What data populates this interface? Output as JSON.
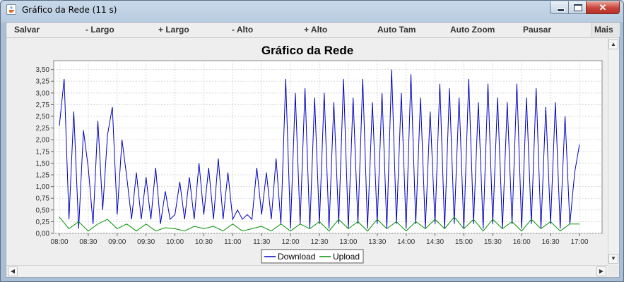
{
  "window": {
    "title": "Gráfico da Rede (11 s)",
    "app_icon": "java-cup-icon",
    "controls": {
      "minimize_icon": "minimize-icon",
      "maximize_icon": "maximize-icon",
      "close_label": "✕"
    }
  },
  "toolbar": {
    "items": [
      "Salvar",
      "- Largo",
      "+ Largo",
      "- Alto",
      "+ Alto",
      "Auto Tam",
      "Auto Zoom",
      "Pausar"
    ],
    "more_label": "Mais"
  },
  "scrollbars": {
    "up": "▲",
    "down": "▼",
    "left": "◀",
    "right": "▶"
  },
  "chart_data": {
    "type": "line",
    "title": "Gráfico da Rede",
    "xlabel": "",
    "ylabel": "",
    "x_ticks": [
      "08:00",
      "08:30",
      "09:00",
      "09:30",
      "10:00",
      "10:30",
      "11:00",
      "11:30",
      "12:00",
      "12:30",
      "13:00",
      "13:30",
      "14:00",
      "14:30",
      "15:00",
      "15:30",
      "16:00",
      "16:30",
      "17:00"
    ],
    "y_ticks": [
      "0,00",
      "0,25",
      "0,50",
      "0,75",
      "1,00",
      "1,25",
      "1,50",
      "1,75",
      "2,00",
      "2,25",
      "2,50",
      "2,75",
      "3,00",
      "3,25",
      "3,50"
    ],
    "xlim": [
      "08:00",
      "17:00"
    ],
    "ylim": [
      0,
      3.6
    ],
    "grid": true,
    "legend_position": "bottom-center",
    "series": [
      {
        "name": "Download",
        "color": "#0000c0",
        "segments": [
          {
            "x": "08:00",
            "y": 2.3
          },
          {
            "x": "08:05",
            "y": 3.3
          },
          {
            "x": "08:10",
            "y": 0.3
          },
          {
            "x": "08:15",
            "y": 2.6
          },
          {
            "x": "08:20",
            "y": 0.1
          },
          {
            "x": "08:25",
            "y": 2.2
          },
          {
            "x": "08:30",
            "y": 1.4
          },
          {
            "x": "08:35",
            "y": 0.2
          },
          {
            "x": "08:40",
            "y": 2.4
          },
          {
            "x": "08:45",
            "y": 0.5
          },
          {
            "x": "08:50",
            "y": 2.1
          },
          {
            "x": "08:55",
            "y": 2.7
          },
          {
            "x": "09:00",
            "y": 0.4
          },
          {
            "x": "09:05",
            "y": 2.0
          },
          {
            "x": "09:10",
            "y": 1.2
          },
          {
            "x": "09:15",
            "y": 0.3
          },
          {
            "x": "09:20",
            "y": 1.3
          },
          {
            "x": "09:25",
            "y": 0.3
          },
          {
            "x": "09:30",
            "y": 1.2
          },
          {
            "x": "09:35",
            "y": 0.3
          },
          {
            "x": "09:40",
            "y": 1.4
          },
          {
            "x": "09:45",
            "y": 0.2
          },
          {
            "x": "09:50",
            "y": 0.9
          },
          {
            "x": "09:55",
            "y": 0.3
          },
          {
            "x": "10:00",
            "y": 0.4
          },
          {
            "x": "10:05",
            "y": 1.1
          },
          {
            "x": "10:10",
            "y": 0.3
          },
          {
            "x": "10:15",
            "y": 1.2
          },
          {
            "x": "10:20",
            "y": 0.3
          },
          {
            "x": "10:25",
            "y": 1.5
          },
          {
            "x": "10:30",
            "y": 0.4
          },
          {
            "x": "10:35",
            "y": 1.4
          },
          {
            "x": "10:40",
            "y": 0.3
          },
          {
            "x": "10:45",
            "y": 1.6
          },
          {
            "x": "10:50",
            "y": 0.3
          },
          {
            "x": "10:55",
            "y": 1.3
          },
          {
            "x": "11:00",
            "y": 0.3
          },
          {
            "x": "11:05",
            "y": 0.5
          },
          {
            "x": "11:10",
            "y": 0.3
          },
          {
            "x": "11:15",
            "y": 0.4
          },
          {
            "x": "11:20",
            "y": 0.3
          },
          {
            "x": "11:25",
            "y": 1.4
          },
          {
            "x": "11:30",
            "y": 0.4
          },
          {
            "x": "11:35",
            "y": 1.3
          },
          {
            "x": "11:40",
            "y": 0.3
          },
          {
            "x": "11:45",
            "y": 1.6
          },
          {
            "x": "11:50",
            "y": 0.2
          },
          {
            "x": "11:55",
            "y": 3.3
          },
          {
            "x": "12:00",
            "y": 0.1
          },
          {
            "x": "12:05",
            "y": 3.0
          },
          {
            "x": "12:10",
            "y": 0.2
          },
          {
            "x": "12:15",
            "y": 3.1
          },
          {
            "x": "12:20",
            "y": 0.1
          },
          {
            "x": "12:25",
            "y": 2.9
          },
          {
            "x": "12:30",
            "y": 0.2
          },
          {
            "x": "12:35",
            "y": 3.0
          },
          {
            "x": "12:40",
            "y": 0.1
          },
          {
            "x": "12:45",
            "y": 2.8
          },
          {
            "x": "12:50",
            "y": 0.2
          },
          {
            "x": "12:55",
            "y": 3.3
          },
          {
            "x": "13:00",
            "y": 0.1
          },
          {
            "x": "13:05",
            "y": 2.9
          },
          {
            "x": "13:10",
            "y": 0.2
          },
          {
            "x": "13:15",
            "y": 3.3
          },
          {
            "x": "13:20",
            "y": 0.1
          },
          {
            "x": "13:25",
            "y": 2.8
          },
          {
            "x": "13:30",
            "y": 0.2
          },
          {
            "x": "13:35",
            "y": 3.0
          },
          {
            "x": "13:40",
            "y": 0.1
          },
          {
            "x": "13:45",
            "y": 3.5
          },
          {
            "x": "13:50",
            "y": 0.2
          },
          {
            "x": "13:55",
            "y": 3.0
          },
          {
            "x": "14:00",
            "y": 0.1
          },
          {
            "x": "14:05",
            "y": 3.4
          },
          {
            "x": "14:10",
            "y": 0.2
          },
          {
            "x": "14:15",
            "y": 2.9
          },
          {
            "x": "14:20",
            "y": 0.1
          },
          {
            "x": "14:25",
            "y": 2.6
          },
          {
            "x": "14:30",
            "y": 0.2
          },
          {
            "x": "14:35",
            "y": 3.2
          },
          {
            "x": "14:40",
            "y": 0.1
          },
          {
            "x": "14:45",
            "y": 3.1
          },
          {
            "x": "14:50",
            "y": 0.2
          },
          {
            "x": "14:55",
            "y": 2.9
          },
          {
            "x": "15:00",
            "y": 0.1
          },
          {
            "x": "15:05",
            "y": 3.3
          },
          {
            "x": "15:10",
            "y": 0.2
          },
          {
            "x": "15:15",
            "y": 2.8
          },
          {
            "x": "15:20",
            "y": 0.1
          },
          {
            "x": "15:25",
            "y": 3.2
          },
          {
            "x": "15:30",
            "y": 0.2
          },
          {
            "x": "15:35",
            "y": 2.9
          },
          {
            "x": "15:40",
            "y": 0.1
          },
          {
            "x": "15:45",
            "y": 2.8
          },
          {
            "x": "15:50",
            "y": 0.2
          },
          {
            "x": "15:55",
            "y": 3.2
          },
          {
            "x": "16:00",
            "y": 0.1
          },
          {
            "x": "16:05",
            "y": 2.9
          },
          {
            "x": "16:10",
            "y": 0.2
          },
          {
            "x": "16:15",
            "y": 3.1
          },
          {
            "x": "16:20",
            "y": 0.1
          },
          {
            "x": "16:25",
            "y": 2.7
          },
          {
            "x": "16:30",
            "y": 0.2
          },
          {
            "x": "16:35",
            "y": 2.8
          },
          {
            "x": "16:40",
            "y": 0.1
          },
          {
            "x": "16:45",
            "y": 2.5
          },
          {
            "x": "16:50",
            "y": 0.2
          },
          {
            "x": "16:55",
            "y": 1.3
          },
          {
            "x": "17:00",
            "y": 1.9
          }
        ]
      },
      {
        "name": "Upload",
        "color": "#009000",
        "segments": [
          {
            "x": "08:00",
            "y": 0.35
          },
          {
            "x": "08:10",
            "y": 0.1
          },
          {
            "x": "08:20",
            "y": 0.25
          },
          {
            "x": "08:30",
            "y": 0.05
          },
          {
            "x": "08:40",
            "y": 0.2
          },
          {
            "x": "08:50",
            "y": 0.3
          },
          {
            "x": "09:00",
            "y": 0.1
          },
          {
            "x": "09:10",
            "y": 0.2
          },
          {
            "x": "09:20",
            "y": 0.05
          },
          {
            "x": "09:30",
            "y": 0.2
          },
          {
            "x": "09:40",
            "y": 0.05
          },
          {
            "x": "09:50",
            "y": 0.12
          },
          {
            "x": "10:00",
            "y": 0.1
          },
          {
            "x": "10:10",
            "y": 0.05
          },
          {
            "x": "10:20",
            "y": 0.15
          },
          {
            "x": "10:30",
            "y": 0.1
          },
          {
            "x": "10:40",
            "y": 0.15
          },
          {
            "x": "10:50",
            "y": 0.05
          },
          {
            "x": "11:00",
            "y": 0.2
          },
          {
            "x": "11:10",
            "y": 0.05
          },
          {
            "x": "11:20",
            "y": 0.1
          },
          {
            "x": "11:30",
            "y": 0.15
          },
          {
            "x": "11:40",
            "y": 0.05
          },
          {
            "x": "11:50",
            "y": 0.2
          },
          {
            "x": "12:00",
            "y": 0.05
          },
          {
            "x": "12:10",
            "y": 0.2
          },
          {
            "x": "12:20",
            "y": 0.1
          },
          {
            "x": "12:30",
            "y": 0.25
          },
          {
            "x": "12:40",
            "y": 0.05
          },
          {
            "x": "12:50",
            "y": 0.3
          },
          {
            "x": "13:00",
            "y": 0.1
          },
          {
            "x": "13:10",
            "y": 0.25
          },
          {
            "x": "13:20",
            "y": 0.05
          },
          {
            "x": "13:30",
            "y": 0.3
          },
          {
            "x": "13:40",
            "y": 0.1
          },
          {
            "x": "13:50",
            "y": 0.25
          },
          {
            "x": "14:00",
            "y": 0.05
          },
          {
            "x": "14:10",
            "y": 0.25
          },
          {
            "x": "14:20",
            "y": 0.1
          },
          {
            "x": "14:30",
            "y": 0.3
          },
          {
            "x": "14:40",
            "y": 0.1
          },
          {
            "x": "14:50",
            "y": 0.35
          },
          {
            "x": "15:00",
            "y": 0.1
          },
          {
            "x": "15:10",
            "y": 0.3
          },
          {
            "x": "15:20",
            "y": 0.05
          },
          {
            "x": "15:30",
            "y": 0.3
          },
          {
            "x": "15:40",
            "y": 0.1
          },
          {
            "x": "15:50",
            "y": 0.25
          },
          {
            "x": "16:00",
            "y": 0.05
          },
          {
            "x": "16:10",
            "y": 0.3
          },
          {
            "x": "16:20",
            "y": 0.1
          },
          {
            "x": "16:30",
            "y": 0.25
          },
          {
            "x": "16:40",
            "y": 0.05
          },
          {
            "x": "16:50",
            "y": 0.2
          },
          {
            "x": "17:00",
            "y": 0.2
          }
        ]
      }
    ]
  }
}
